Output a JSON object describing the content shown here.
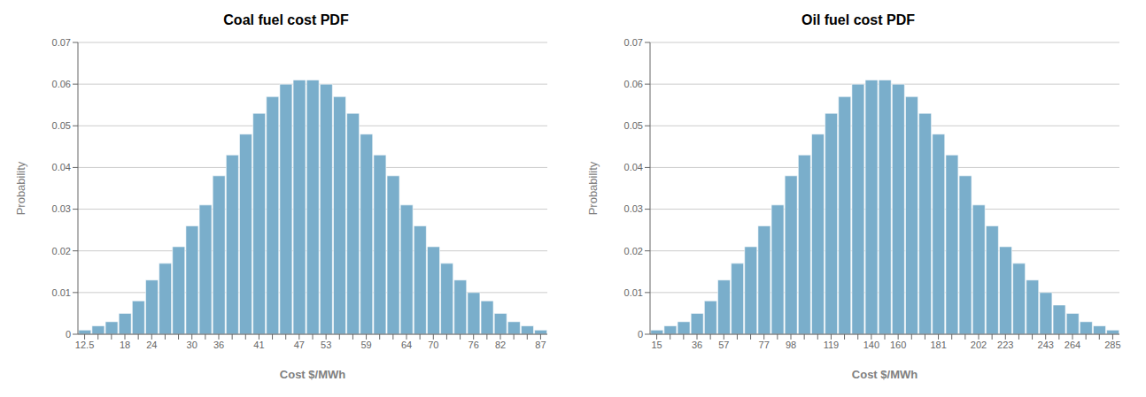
{
  "chart_data": [
    {
      "type": "bar",
      "title": "Coal fuel cost PDF",
      "xlabel": "Cost $/MWh",
      "ylabel": "Probability",
      "categories": [
        "12.5",
        null,
        null,
        "18",
        null,
        "24",
        null,
        null,
        "30",
        null,
        "36",
        null,
        null,
        "41",
        null,
        null,
        "47",
        null,
        "53",
        null,
        null,
        "59",
        null,
        null,
        "64",
        null,
        "70",
        null,
        null,
        "76",
        null,
        "82",
        null,
        null,
        "87"
      ],
      "values": [
        0.001,
        0.002,
        0.003,
        0.005,
        0.008,
        0.013,
        0.017,
        0.021,
        0.026,
        0.031,
        0.038,
        0.043,
        0.048,
        0.053,
        0.057,
        0.06,
        0.061,
        0.061,
        0.06,
        0.057,
        0.053,
        0.048,
        0.043,
        0.038,
        0.031,
        0.026,
        0.021,
        0.017,
        0.013,
        0.01,
        0.008,
        0.005,
        0.003,
        0.002,
        0.001
      ],
      "color": "#7aaecb",
      "ylim": [
        0,
        0.07
      ],
      "yticks": [
        0,
        0.01,
        0.02,
        0.03,
        0.04,
        0.05,
        0.06,
        0.07
      ],
      "grid": true
    },
    {
      "type": "bar",
      "title": "Oil fuel cost PDF",
      "xlabel": "Cost $/MWh",
      "ylabel": "Probability",
      "categories": [
        "15",
        null,
        null,
        "36",
        null,
        "57",
        null,
        null,
        "77",
        null,
        "98",
        null,
        null,
        "119",
        null,
        null,
        "140",
        null,
        "160",
        null,
        null,
        "181",
        null,
        null,
        "202",
        null,
        "223",
        null,
        null,
        "243",
        null,
        "264",
        null,
        null,
        "285"
      ],
      "values": [
        0.001,
        0.002,
        0.003,
        0.005,
        0.008,
        0.013,
        0.017,
        0.021,
        0.026,
        0.031,
        0.038,
        0.043,
        0.048,
        0.053,
        0.057,
        0.06,
        0.061,
        0.061,
        0.06,
        0.057,
        0.053,
        0.048,
        0.043,
        0.038,
        0.031,
        0.026,
        0.021,
        0.017,
        0.013,
        0.01,
        0.007,
        0.005,
        0.003,
        0.002,
        0.001
      ],
      "color": "#7aaecb",
      "ylim": [
        0,
        0.07
      ],
      "yticks": [
        0,
        0.01,
        0.02,
        0.03,
        0.04,
        0.05,
        0.06,
        0.07
      ],
      "grid": true
    }
  ]
}
